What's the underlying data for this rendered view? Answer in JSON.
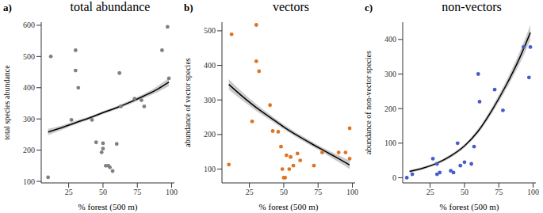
{
  "chart_data": [
    {
      "type": "scatter",
      "title": "total abundance",
      "annotations": [
        "a)"
      ],
      "x_label": "% forest (500 m)",
      "y_label": "total species abundance",
      "xlim": [
        5,
        102
      ],
      "xticks": [
        25,
        50,
        75,
        100
      ],
      "ylim": [
        95,
        610
      ],
      "yticks": [
        100,
        200,
        300,
        400,
        500,
        600
      ],
      "series": [
        {
          "type": "scatter",
          "color": "#808080",
          "x": [
            10,
            12,
            27,
            30,
            30,
            32,
            42,
            45,
            49,
            50,
            50,
            52,
            54,
            55,
            57,
            60,
            62,
            63,
            73,
            78,
            80,
            93,
            97,
            98
          ],
          "values": [
            113,
            500,
            297,
            455,
            520,
            400,
            297,
            225,
            193,
            205,
            222,
            150,
            150,
            145,
            133,
            220,
            447,
            340,
            365,
            360,
            340,
            520,
            595,
            430
          ]
        },
        {
          "type": "line",
          "color": "#000000",
          "x": [
            10,
            20,
            30,
            40,
            50,
            60,
            70,
            80,
            90,
            98
          ],
          "values": [
            258,
            272,
            288,
            303,
            320,
            336,
            354,
            374,
            396,
            418
          ],
          "lower": [
            248,
            265,
            282,
            298,
            315,
            331,
            348,
            367,
            386,
            405
          ],
          "upper": [
            268,
            279,
            294,
            308,
            325,
            341,
            360,
            381,
            406,
            431
          ]
        }
      ]
    },
    {
      "type": "scatter",
      "title": "vectors",
      "annotations": [
        "b)"
      ],
      "x_label": "% forest (500 m)",
      "y_label": "abundance of vector species",
      "xlim": [
        5,
        102
      ],
      "xticks": [
        25,
        50,
        75,
        100
      ],
      "ylim": [
        60,
        525
      ],
      "yticks": [
        100,
        200,
        300,
        400,
        500
      ],
      "series": [
        {
          "type": "scatter",
          "color": "#e0731f",
          "x": [
            10,
            12,
            27,
            30,
            30,
            32,
            40,
            42,
            46,
            48,
            49,
            50,
            51,
            52,
            54,
            55,
            57,
            60,
            62,
            72,
            78,
            90,
            95,
            98,
            98
          ],
          "values": [
            113,
            490,
            238,
            412,
            517,
            383,
            285,
            210,
            208,
            165,
            100,
            75,
            75,
            140,
            100,
            135,
            110,
            145,
            125,
            110,
            148,
            148,
            148,
            218,
            130
          ]
        },
        {
          "type": "line",
          "color": "#000000",
          "x": [
            10,
            20,
            30,
            40,
            50,
            60,
            70,
            80,
            90,
            98
          ],
          "values": [
            345,
            310,
            278,
            250,
            222,
            197,
            174,
            152,
            130,
            112
          ],
          "lower": [
            330,
            298,
            268,
            242,
            215,
            190,
            167,
            145,
            120,
            100
          ],
          "upper": [
            360,
            322,
            288,
            258,
            229,
            204,
            181,
            159,
            140,
            124
          ]
        }
      ]
    },
    {
      "type": "scatter",
      "title": "non-vectors",
      "annotations": [
        "c)"
      ],
      "x_label": "% forest (500 m)",
      "y_label": "abundance of non-vector species",
      "xlim": [
        5,
        102
      ],
      "xticks": [
        25,
        50,
        75,
        100
      ],
      "ylim": [
        -15,
        450
      ],
      "yticks": [
        0,
        100,
        200,
        300,
        400
      ],
      "series": [
        {
          "type": "scatter",
          "color": "#4a5cc7",
          "x": [
            8,
            12,
            27,
            30,
            30,
            32,
            40,
            42,
            45,
            47,
            50,
            55,
            57,
            60,
            61,
            72,
            78,
            93,
            97,
            98
          ],
          "values": [
            0,
            10,
            55,
            40,
            10,
            15,
            20,
            15,
            100,
            35,
            45,
            40,
            90,
            300,
            220,
            255,
            195,
            378,
            290,
            378
          ]
        },
        {
          "type": "line",
          "color": "#000000",
          "x": [
            10,
            20,
            30,
            40,
            50,
            60,
            70,
            80,
            90,
            98
          ],
          "values": [
            18,
            28,
            42,
            63,
            92,
            135,
            195,
            265,
            345,
            420
          ],
          "lower": [
            14,
            24,
            38,
            58,
            87,
            128,
            186,
            253,
            328,
            398
          ],
          "upper": [
            22,
            32,
            46,
            68,
            97,
            142,
            204,
            277,
            362,
            442
          ]
        }
      ]
    }
  ]
}
